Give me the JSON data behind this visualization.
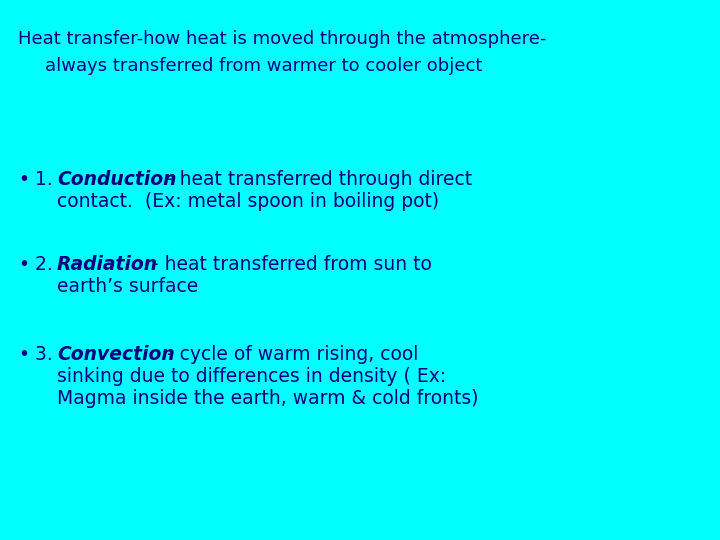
{
  "background_color": "#00FFFF",
  "title_line1": "Heat transfer-how heat is moved through the atmosphere-",
  "title_line2": "always transferred from warmer to cooler object",
  "title_fontsize": 13,
  "title_color": "#000080",
  "bullet_color": "#000080",
  "bullet_fontsize": 13.5,
  "figsize": [
    7.2,
    5.4
  ],
  "dpi": 100,
  "bullets": [
    {
      "number": "1. ",
      "bold_word": "Conduction",
      "rest_line1": "- heat transferred through direct",
      "rest_line2": "contact.  (Ex: metal spoon in boiling pot)"
    },
    {
      "number": "2. ",
      "bold_word": "Radiation",
      "rest_line1": "- heat transferred from sun to",
      "rest_line2": "earth’s surface"
    },
    {
      "number": "3. ",
      "bold_word": "Convection",
      "rest_line1": "- cycle of warm rising, cool",
      "rest_line2": "sinking due to differences in density ( Ex:",
      "rest_line3": "Magma inside the earth, warm & cold fronts)"
    }
  ]
}
